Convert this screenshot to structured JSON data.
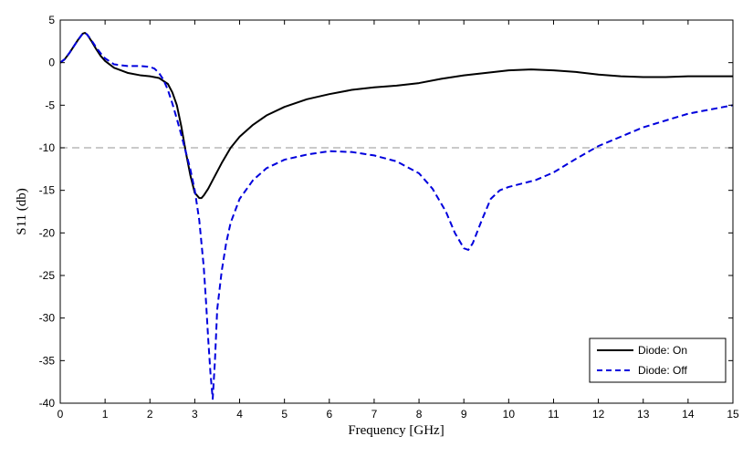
{
  "chart_data": {
    "type": "line",
    "title": "",
    "xlabel": "Frequency [GHz]",
    "ylabel": "S11 (db)",
    "xlim": [
      0,
      15
    ],
    "ylim": [
      -40,
      5
    ],
    "xticks": [
      0,
      1,
      2,
      3,
      4,
      5,
      6,
      7,
      8,
      9,
      10,
      11,
      12,
      13,
      14,
      15
    ],
    "yticks": [
      5,
      0,
      -5,
      -10,
      -15,
      -20,
      -25,
      -30,
      -35,
      -40
    ],
    "grid": false,
    "legend_position": "bottom-right",
    "reference_line": {
      "y": -10,
      "color": "#aaaaaa",
      "style": "dashed"
    },
    "series": [
      {
        "name": "Diode: On",
        "color": "#000000",
        "style": "solid",
        "x": [
          0,
          0.1,
          0.2,
          0.3,
          0.4,
          0.5,
          0.55,
          0.6,
          0.7,
          0.8,
          0.9,
          1.0,
          1.2,
          1.5,
          1.8,
          2.0,
          2.2,
          2.4,
          2.5,
          2.6,
          2.7,
          2.8,
          2.9,
          3.0,
          3.1,
          3.15,
          3.2,
          3.3,
          3.4,
          3.6,
          3.8,
          4.0,
          4.3,
          4.6,
          5.0,
          5.5,
          6.0,
          6.5,
          7.0,
          7.5,
          8.0,
          8.5,
          9.0,
          9.5,
          10.0,
          10.5,
          11.0,
          11.5,
          12.0,
          12.5,
          13.0,
          13.5,
          14.0,
          14.5,
          15.0
        ],
        "y": [
          0,
          0.4,
          1.1,
          1.9,
          2.7,
          3.4,
          3.5,
          3.3,
          2.5,
          1.6,
          0.8,
          0.2,
          -0.6,
          -1.2,
          -1.5,
          -1.6,
          -1.8,
          -2.5,
          -3.5,
          -5.0,
          -7.5,
          -10.5,
          -13.2,
          -15.3,
          -15.9,
          -15.9,
          -15.6,
          -14.8,
          -13.8,
          -11.8,
          -10.0,
          -8.7,
          -7.3,
          -6.2,
          -5.2,
          -4.3,
          -3.7,
          -3.2,
          -2.9,
          -2.7,
          -2.4,
          -1.9,
          -1.5,
          -1.2,
          -0.9,
          -0.8,
          -0.9,
          -1.1,
          -1.4,
          -1.6,
          -1.7,
          -1.7,
          -1.6,
          -1.6,
          -1.6
        ]
      },
      {
        "name": "Diode: Off",
        "color": "#0000dd",
        "style": "dashed",
        "x": [
          0,
          0.1,
          0.2,
          0.3,
          0.4,
          0.5,
          0.55,
          0.6,
          0.7,
          0.8,
          0.9,
          1.0,
          1.2,
          1.5,
          1.8,
          2.0,
          2.1,
          2.2,
          2.3,
          2.4,
          2.5,
          2.6,
          2.7,
          2.8,
          2.9,
          3.0,
          3.1,
          3.2,
          3.25,
          3.3,
          3.35,
          3.4,
          3.45,
          3.5,
          3.6,
          3.7,
          3.8,
          4.0,
          4.3,
          4.6,
          5.0,
          5.5,
          6.0,
          6.5,
          7.0,
          7.5,
          8.0,
          8.3,
          8.6,
          8.8,
          9.0,
          9.1,
          9.2,
          9.4,
          9.6,
          9.8,
          10.0,
          10.3,
          10.6,
          11.0,
          11.5,
          12.0,
          12.5,
          13.0,
          13.5,
          14.0,
          14.5,
          15.0
        ],
        "y": [
          0,
          0.4,
          1.1,
          1.9,
          2.7,
          3.4,
          3.5,
          3.3,
          2.6,
          1.8,
          1.1,
          0.5,
          -0.2,
          -0.4,
          -0.4,
          -0.5,
          -0.7,
          -1.2,
          -2.0,
          -3.2,
          -4.8,
          -6.6,
          -8.5,
          -10.5,
          -12.5,
          -15.0,
          -18.5,
          -24.0,
          -28.0,
          -32.5,
          -36.5,
          -39.5,
          -35.0,
          -29.0,
          -24.5,
          -21.2,
          -18.8,
          -16.0,
          -13.8,
          -12.4,
          -11.4,
          -10.8,
          -10.4,
          -10.5,
          -10.9,
          -11.6,
          -13.0,
          -14.8,
          -17.5,
          -20.0,
          -21.8,
          -22.0,
          -21.2,
          -18.5,
          -16.0,
          -15.0,
          -14.6,
          -14.2,
          -13.8,
          -12.9,
          -11.3,
          -9.8,
          -8.7,
          -7.6,
          -6.8,
          -6.0,
          -5.5,
          -5.0
        ]
      }
    ]
  }
}
